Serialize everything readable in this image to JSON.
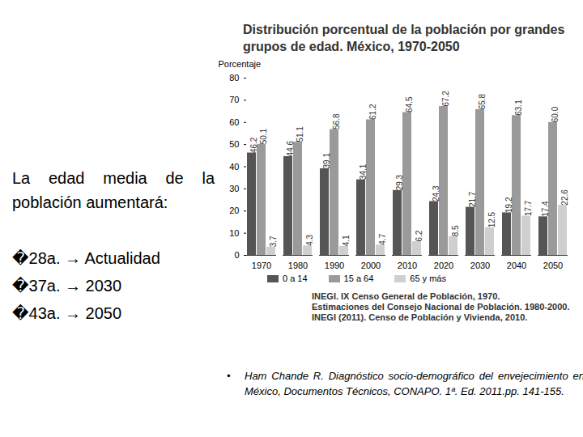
{
  "chart_data": {
    "type": "bar",
    "title": "Distribución porcentual de la población por grandes grupos de edad. México, 1970-2050",
    "y_label": "Porcentaje",
    "categories": [
      1970,
      1980,
      1990,
      2000,
      2010,
      2020,
      2030,
      2040,
      2050
    ],
    "series": [
      {
        "name": "0 a 14",
        "color": "#555555",
        "values": [
          46.2,
          44.6,
          39.1,
          34.1,
          29.3,
          24.3,
          21.7,
          19.2,
          17.4
        ]
      },
      {
        "name": "15 a 64",
        "color": "#9a9a9a",
        "values": [
          50.1,
          51.1,
          56.8,
          61.2,
          64.5,
          67.2,
          65.8,
          63.1,
          60.0
        ],
        "value_labels": [
          "50.1",
          "51.1",
          "56.8",
          "61.2",
          "64.5",
          "67.2",
          "65.8",
          "63.1",
          "60.0"
        ]
      },
      {
        "name": "65 y más",
        "color": "#cfcfcf",
        "values": [
          3.7,
          4.3,
          4.1,
          4.7,
          6.2,
          8.5,
          12.5,
          17.7,
          22.6
        ]
      }
    ],
    "ylim": [
      0,
      80
    ],
    "yticks": [
      0,
      10,
      20,
      30,
      40,
      50,
      60,
      70,
      80
    ],
    "grid": false,
    "legend": "bottom",
    "data_labels": true,
    "annotations": [
      "INEGI. IX Censo General de Población, 1970.",
      "Estimaciones del Consejo Nacional de Población. 1980-2000.",
      "INEGI (2011). Censo de Población y Vivienda, 2010."
    ]
  },
  "slide": {
    "text": "La edad media de la población aumentará:",
    "bullets": [
      "�28a. → Actualidad",
      "�37a. → 2030",
      "�43a. → 2050"
    ],
    "citation": "Ham Chande R. Diagnóstico socio-demográfico del envejecimiento en México, Documentos Técnicos, CONAPO. 1ª. Ed. 2011.pp. 141-155."
  }
}
